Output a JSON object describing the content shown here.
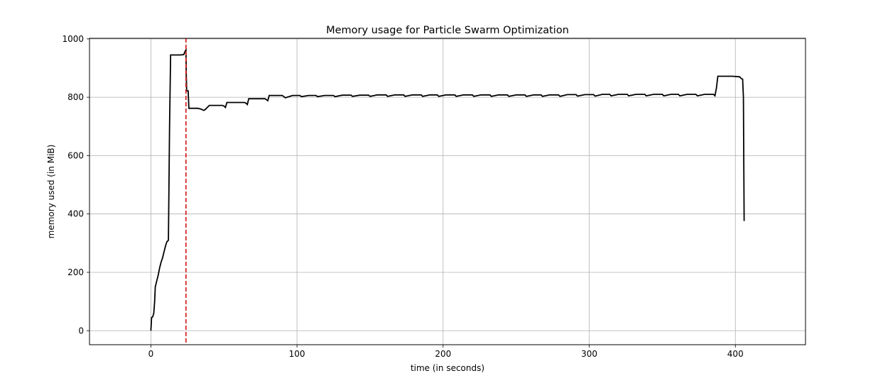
{
  "chart_data": {
    "type": "line",
    "title": "Memory usage for Particle Swarm Optimization",
    "xlabel": "time (in seconds)",
    "ylabel": "memory used (in MiB)",
    "xlim": [
      -42,
      448
    ],
    "ylim": [
      -48,
      1002
    ],
    "xticks": [
      0,
      100,
      200,
      300,
      400
    ],
    "yticks": [
      0,
      200,
      400,
      600,
      800,
      1000
    ],
    "grid": true,
    "vline": {
      "x": 24,
      "color": "#d62728",
      "style": "dashed"
    },
    "series": [
      {
        "color": "#000000",
        "x": [
          0,
          0.5,
          1.2,
          2,
          2.6,
          3,
          4,
          5,
          6,
          7,
          8,
          9,
          10,
          10.5,
          11,
          12,
          12.8,
          13.5,
          14,
          17,
          20,
          22.5,
          23.5,
          24,
          24.2,
          24.5,
          25.5,
          26,
          32,
          34,
          35,
          36,
          37,
          40,
          49,
          50,
          51,
          52,
          64,
          65,
          66,
          67,
          78,
          79,
          80,
          81,
          90,
          91,
          92,
          97,
          102,
          103,
          108,
          113,
          114,
          119,
          125,
          126,
          131,
          137,
          138,
          143,
          149,
          150,
          155,
          161,
          162,
          167,
          173,
          174,
          179,
          185,
          186,
          191,
          196,
          197,
          202,
          208,
          209,
          214,
          220,
          221,
          226,
          232,
          233,
          238,
          244,
          245,
          250,
          256,
          257,
          262,
          267,
          268,
          273,
          279,
          280,
          285,
          291,
          292,
          297,
          303,
          304,
          309,
          314,
          315,
          320,
          326,
          327,
          332,
          338,
          339,
          344,
          350,
          351,
          356,
          361,
          362,
          367,
          373,
          374,
          379,
          385,
          386,
          387,
          388,
          398,
          403,
          404,
          405,
          405.5,
          406
        ],
        "y": [
          0,
          45,
          47,
          60,
          100,
          150,
          170,
          190,
          215,
          235,
          250,
          270,
          290,
          298,
          305,
          310,
          700,
          945,
          945,
          945,
          945,
          946,
          958,
          962,
          880,
          822,
          822,
          762,
          762,
          760,
          758,
          755,
          757,
          772,
          772,
          770,
          765,
          782,
          782,
          780,
          775,
          795,
          795,
          792,
          788,
          806,
          806,
          802,
          798,
          806,
          806,
          802,
          806,
          806,
          802,
          806,
          806,
          802,
          807,
          807,
          803,
          807,
          807,
          803,
          808,
          808,
          803,
          808,
          808,
          803,
          808,
          808,
          803,
          808,
          808,
          803,
          808,
          808,
          803,
          808,
          808,
          803,
          808,
          808,
          803,
          808,
          808,
          803,
          808,
          808,
          803,
          808,
          808,
          803,
          808,
          808,
          803,
          809,
          809,
          804,
          809,
          809,
          804,
          810,
          810,
          805,
          810,
          810,
          805,
          810,
          810,
          805,
          810,
          810,
          805,
          810,
          810,
          805,
          810,
          810,
          805,
          810,
          810,
          805,
          830,
          872,
          872,
          870,
          864,
          862,
          800,
          376
        ]
      }
    ]
  }
}
